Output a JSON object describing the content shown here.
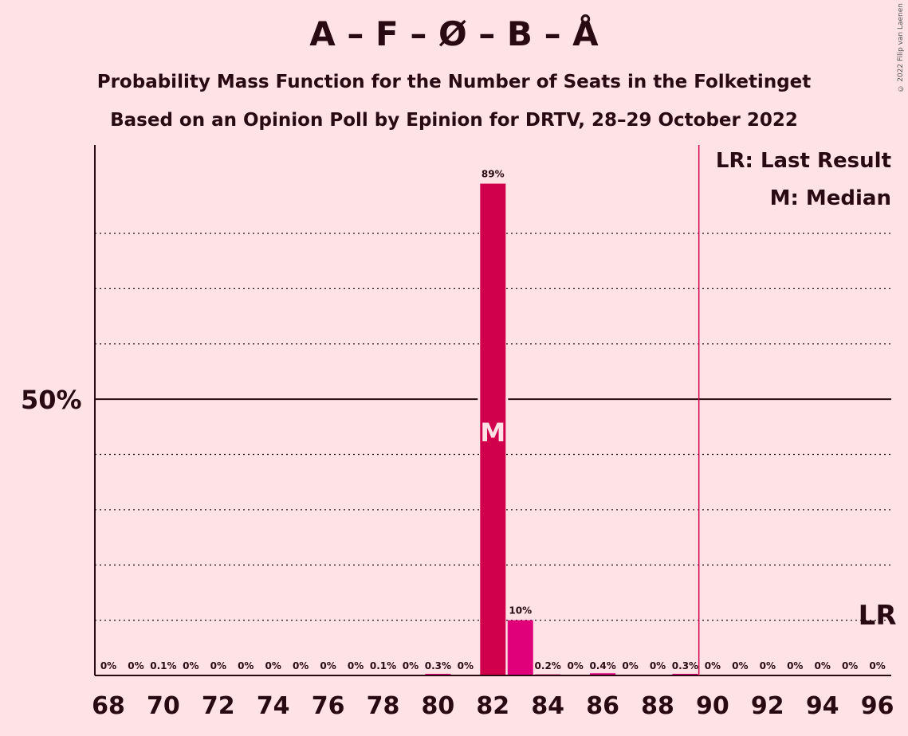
{
  "chart_data": {
    "type": "bar",
    "title": "A – F – Ø – B – Å",
    "subtitle_1": "Probability Mass Function for the Number of Seats in the Folketinget",
    "subtitle_2": "Based on an Opinion Poll by Epinion for DRTV, 28–29 October 2022",
    "copyright": "© 2022 Filip van Laenen",
    "x": [
      68,
      69,
      70,
      71,
      72,
      73,
      74,
      75,
      76,
      77,
      78,
      79,
      80,
      81,
      82,
      83,
      84,
      85,
      86,
      87,
      88,
      89,
      90,
      91,
      92,
      93,
      94,
      95,
      96
    ],
    "values": [
      0,
      0,
      0.1,
      0,
      0,
      0,
      0,
      0,
      0,
      0,
      0.1,
      0,
      0.3,
      0,
      89,
      10,
      0.2,
      0,
      0.4,
      0,
      0,
      0.3,
      0,
      0,
      0,
      0,
      0,
      0,
      0
    ],
    "value_labels": [
      "0%",
      "0%",
      "0.1%",
      "0%",
      "0%",
      "0%",
      "0%",
      "0%",
      "0%",
      "0%",
      "0.1%",
      "0%",
      "0.3%",
      "0%",
      "89%",
      "10%",
      "0.2%",
      "0%",
      "0.4%",
      "0%",
      "0%",
      "0.3%",
      "0%",
      "0%",
      "0%",
      "0%",
      "0%",
      "0%",
      "0%"
    ],
    "x_tick_labels": [
      "68",
      "70",
      "72",
      "74",
      "76",
      "78",
      "80",
      "82",
      "84",
      "86",
      "88",
      "90",
      "92",
      "94",
      "96"
    ],
    "y_tick_label": "50%",
    "ylim": [
      0,
      96
    ],
    "gridlines": [
      10,
      20,
      30,
      40,
      60,
      70,
      80
    ],
    "solid_line": 50,
    "median_seat": 82,
    "median_label": "M",
    "majority_seat": 90,
    "last_result_seat": 96,
    "last_result_label": "LR",
    "legend": [
      "LR: Last Result",
      "M: Median"
    ],
    "colors": {
      "background": "#FFE2E6",
      "median_bar": "#D0004D",
      "bar": "#E0007A",
      "majority_line": "#D0004D",
      "text": "#2a0a12"
    }
  }
}
